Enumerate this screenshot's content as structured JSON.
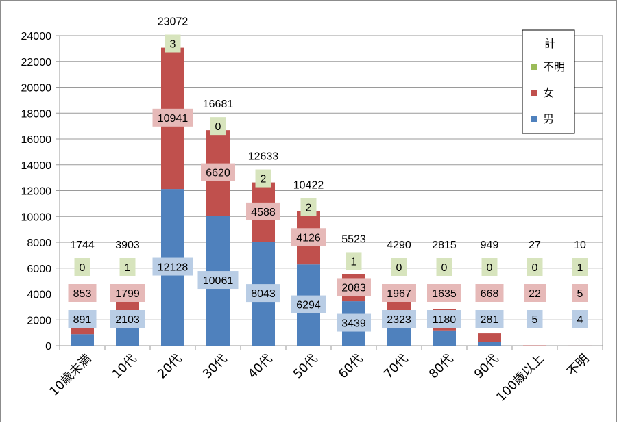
{
  "chart_data": {
    "type": "bar",
    "stacked": true,
    "categories": [
      "10歳未満",
      "10代",
      "20代",
      "30代",
      "40代",
      "50代",
      "60代",
      "70代",
      "80代",
      "90代",
      "100歳以上",
      "不明"
    ],
    "series": [
      {
        "name": "男",
        "color": "#4f81bd",
        "label_bg": "#b9cde5",
        "values": [
          891,
          2103,
          12128,
          10061,
          8043,
          6294,
          3439,
          2323,
          1180,
          281,
          5,
          4
        ]
      },
      {
        "name": "女",
        "color": "#c0504d",
        "label_bg": "#e6b9b8",
        "values": [
          853,
          1799,
          10941,
          6620,
          4588,
          4126,
          2083,
          1967,
          1635,
          668,
          22,
          5
        ]
      },
      {
        "name": "不明",
        "color": "#9bbb59",
        "label_bg": "#d7e4bd",
        "values": [
          0,
          1,
          3,
          0,
          2,
          2,
          1,
          0,
          0,
          0,
          0,
          1
        ]
      }
    ],
    "totals": [
      1744,
      3903,
      23072,
      16681,
      12633,
      10422,
      5523,
      4290,
      2815,
      949,
      27,
      10
    ],
    "ylim": [
      0,
      24000
    ],
    "yticks": [
      0,
      2000,
      4000,
      6000,
      8000,
      10000,
      12000,
      14000,
      16000,
      18000,
      20000,
      22000,
      24000
    ],
    "legend": {
      "title": "計",
      "position": "top-right",
      "entries": [
        "不明",
        "女",
        "男"
      ]
    },
    "grid": true
  }
}
